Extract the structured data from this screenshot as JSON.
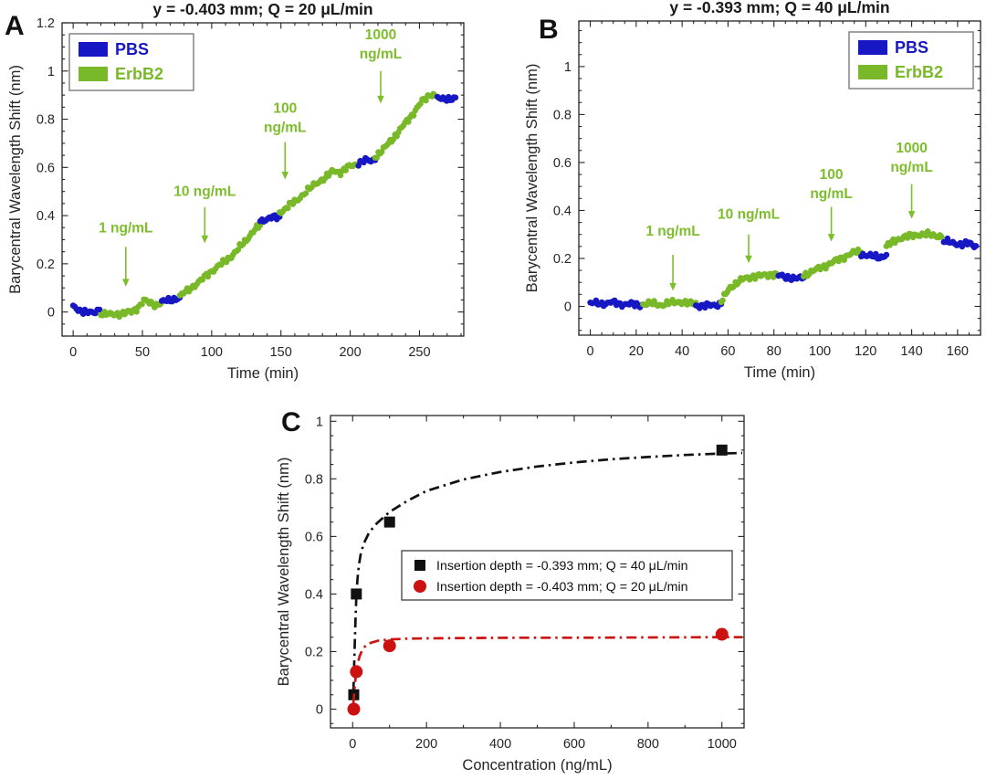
{
  "figure": {
    "background": "#ffffff"
  },
  "colors": {
    "pbs_blue": "#1717c4",
    "erbb2_green": "#79b929",
    "annotation_green": "#7cbe2b",
    "fit_black": "#111111",
    "fit_red": "#cc1111",
    "axis": "#252525",
    "title_text": "#1a1a1a",
    "legend_border": "#7a7a7a"
  },
  "chart_data": [
    {
      "panel_label": "A",
      "type": "scatter",
      "title": "y = -0.403 mm; Q = 20 μL/min",
      "xlabel": "Time (min)",
      "ylabel": "Barycentral Wavelength Shift (nm)",
      "xlim": [
        -8,
        282
      ],
      "ylim": [
        -0.1,
        1.2
      ],
      "xticks": [
        0,
        50,
        100,
        150,
        200,
        250
      ],
      "xtick_labels": [
        "0",
        "50",
        "100",
        "150",
        "200",
        "250"
      ],
      "yticks": [
        0,
        0.2,
        0.4,
        0.6,
        0.8,
        1,
        1.2
      ],
      "ytick_labels": [
        "0",
        "0.2",
        "0.4",
        "0.6",
        "0.8",
        "1",
        "1.2"
      ],
      "x_minor_step": 10,
      "y_minor_step": 0.05,
      "grid": false,
      "legend": {
        "position": "top-left",
        "entries": [
          {
            "label": "PBS",
            "color_key": "pbs_blue"
          },
          {
            "label": "ErbB2",
            "color_key": "erbb2_green"
          }
        ]
      },
      "series_segments": [
        {
          "series": "PBS",
          "color_key": "pbs_blue",
          "points": [
            [
              0,
              0.02
            ],
            [
              6,
              0.005
            ],
            [
              12,
              -0.005
            ],
            [
              16,
              0.0
            ],
            [
              19,
              0.01
            ]
          ]
        },
        {
          "series": "ErbB2",
          "color_key": "erbb2_green",
          "points": [
            [
              20,
              -0.005
            ],
            [
              28,
              -0.012
            ],
            [
              36,
              -0.005
            ],
            [
              42,
              0.0
            ],
            [
              47,
              0.02
            ],
            [
              51,
              0.048
            ],
            [
              55,
              0.038
            ],
            [
              60,
              0.03
            ],
            [
              64,
              0.04
            ]
          ]
        },
        {
          "series": "PBS",
          "color_key": "pbs_blue",
          "points": [
            [
              64,
              0.042
            ],
            [
              70,
              0.05
            ],
            [
              77,
              0.06
            ]
          ]
        },
        {
          "series": "ErbB2",
          "color_key": "erbb2_green",
          "points": [
            [
              77,
              0.065
            ],
            [
              85,
              0.1
            ],
            [
              92,
              0.13
            ],
            [
              100,
              0.17
            ],
            [
              107,
              0.2
            ],
            [
              113,
              0.225
            ],
            [
              119,
              0.26
            ],
            [
              125,
              0.3
            ],
            [
              130,
              0.335
            ],
            [
              135,
              0.36
            ]
          ]
        },
        {
          "series": "PBS",
          "color_key": "pbs_blue",
          "points": [
            [
              135,
              0.375
            ],
            [
              139,
              0.385
            ],
            [
              143,
              0.395
            ],
            [
              147,
              0.39
            ],
            [
              149,
              0.395
            ]
          ]
        },
        {
          "series": "ErbB2",
          "color_key": "erbb2_green",
          "points": [
            [
              149,
              0.41
            ],
            [
              155,
              0.44
            ],
            [
              161,
              0.46
            ],
            [
              168,
              0.5
            ],
            [
              175,
              0.53
            ],
            [
              182,
              0.56
            ],
            [
              188,
              0.585
            ],
            [
              193,
              0.58
            ],
            [
              198,
              0.6
            ],
            [
              206,
              0.615
            ]
          ]
        },
        {
          "series": "PBS",
          "color_key": "pbs_blue",
          "points": [
            [
              206,
              0.62
            ],
            [
              211,
              0.63
            ],
            [
              215,
              0.625
            ],
            [
              218,
              0.63
            ]
          ]
        },
        {
          "series": "ErbB2",
          "color_key": "erbb2_green",
          "points": [
            [
              218,
              0.645
            ],
            [
              224,
              0.675
            ],
            [
              230,
              0.715
            ],
            [
              236,
              0.755
            ],
            [
              242,
              0.8
            ],
            [
              247,
              0.835
            ],
            [
              252,
              0.875
            ],
            [
              256,
              0.895
            ],
            [
              259,
              0.905
            ],
            [
              261,
              0.9
            ]
          ]
        },
        {
          "series": "PBS",
          "color_key": "pbs_blue",
          "points": [
            [
              263,
              0.89
            ],
            [
              267,
              0.88
            ],
            [
              271,
              0.885
            ],
            [
              276,
              0.89
            ]
          ]
        }
      ],
      "annotations": [
        {
          "lines": [
            "1 ng/mL"
          ],
          "x": 38,
          "text_v": 0.35,
          "arrow_from": 0.27,
          "arrow_to": 0.105
        },
        {
          "lines": [
            "10 ng/mL"
          ],
          "x": 95,
          "text_v": 0.5,
          "arrow_from": 0.435,
          "arrow_to": 0.285
        },
        {
          "lines": [
            "100",
            "ng/mL"
          ],
          "x": 153,
          "text_v": 0.805,
          "arrow_from": 0.705,
          "arrow_to": 0.55
        },
        {
          "lines": [
            "1000",
            "ng/mL"
          ],
          "x": 222,
          "text_v": 1.11,
          "arrow_from": 1.0,
          "arrow_to": 0.865
        }
      ]
    },
    {
      "panel_label": "B",
      "type": "scatter",
      "title": "y = -0.393 mm; Q = 40 μL/min",
      "xlabel": "Time (min)",
      "ylabel": "Barycentral Wavelength Shift (nm)",
      "xlim": [
        -5,
        170
      ],
      "ylim": [
        -0.12,
        1.19
      ],
      "xticks": [
        0,
        20,
        40,
        60,
        80,
        100,
        120,
        140,
        160
      ],
      "xtick_labels": [
        "0",
        "20",
        "40",
        "60",
        "80",
        "100",
        "120",
        "140",
        "160"
      ],
      "yticks": [
        0,
        0.2,
        0.4,
        0.6,
        0.8,
        1
      ],
      "ytick_labels": [
        "0",
        "0.2",
        "0.4",
        "0.6",
        "0.8",
        "1"
      ],
      "x_minor_step": 5,
      "y_minor_step": 0.05,
      "grid": false,
      "legend": {
        "position": "top-right",
        "entries": [
          {
            "label": "PBS",
            "color_key": "pbs_blue"
          },
          {
            "label": "ErbB2",
            "color_key": "erbb2_green"
          }
        ]
      },
      "series_segments": [
        {
          "series": "PBS",
          "color_key": "pbs_blue",
          "points": [
            [
              0,
              0.015
            ],
            [
              5,
              0.01
            ],
            [
              9,
              0.018
            ],
            [
              13,
              0.008
            ],
            [
              17,
              0.012
            ],
            [
              21,
              0.003
            ],
            [
              23,
              0.008
            ]
          ]
        },
        {
          "series": "ErbB2",
          "color_key": "erbb2_green",
          "points": [
            [
              23,
              0.01
            ],
            [
              27,
              0.012
            ],
            [
              31,
              0.006
            ],
            [
              35,
              0.015
            ],
            [
              39,
              0.02
            ],
            [
              43,
              0.012
            ],
            [
              46,
              0.015
            ]
          ]
        },
        {
          "series": "PBS",
          "color_key": "pbs_blue",
          "points": [
            [
              46,
              0.004
            ],
            [
              50,
              0.002
            ],
            [
              54,
              0.006
            ],
            [
              57,
              0.01
            ]
          ]
        },
        {
          "series": "ErbB2",
          "color_key": "erbb2_green",
          "points": [
            [
              57,
              0.02
            ],
            [
              59,
              0.05
            ],
            [
              61,
              0.08
            ],
            [
              64,
              0.1
            ],
            [
              67,
              0.115
            ],
            [
              71,
              0.125
            ],
            [
              75,
              0.128
            ],
            [
              79,
              0.135
            ],
            [
              82,
              0.13
            ]
          ]
        },
        {
          "series": "PBS",
          "color_key": "pbs_blue",
          "points": [
            [
              82,
              0.128
            ],
            [
              86,
              0.122
            ],
            [
              90,
              0.115
            ],
            [
              93,
              0.12
            ]
          ]
        },
        {
          "series": "ErbB2",
          "color_key": "erbb2_green",
          "points": [
            [
              93,
              0.13
            ],
            [
              97,
              0.148
            ],
            [
              101,
              0.163
            ],
            [
              105,
              0.182
            ],
            [
              109,
              0.198
            ],
            [
              113,
              0.218
            ],
            [
              116,
              0.228
            ],
            [
              118,
              0.225
            ]
          ]
        },
        {
          "series": "PBS",
          "color_key": "pbs_blue",
          "points": [
            [
              118,
              0.218
            ],
            [
              122,
              0.21
            ],
            [
              126,
              0.205
            ],
            [
              129,
              0.215
            ]
          ]
        },
        {
          "series": "ErbB2",
          "color_key": "erbb2_green",
          "points": [
            [
              129,
              0.25
            ],
            [
              132,
              0.27
            ],
            [
              135,
              0.285
            ],
            [
              139,
              0.293
            ],
            [
              143,
              0.3
            ],
            [
              147,
              0.3
            ],
            [
              151,
              0.295
            ],
            [
              153,
              0.29
            ]
          ]
        },
        {
          "series": "PBS",
          "color_key": "pbs_blue",
          "points": [
            [
              154,
              0.272
            ],
            [
              158,
              0.265
            ],
            [
              162,
              0.258
            ],
            [
              165,
              0.263
            ],
            [
              168,
              0.252
            ]
          ]
        }
      ],
      "annotations": [
        {
          "lines": [
            "1 ng/mL"
          ],
          "x": 36,
          "text_v": 0.315,
          "arrow_from": 0.215,
          "arrow_to": 0.065
        },
        {
          "lines": [
            "10 ng/mL"
          ],
          "x": 69,
          "text_v": 0.385,
          "arrow_from": 0.3,
          "arrow_to": 0.18
        },
        {
          "lines": [
            "100",
            "ng/mL"
          ],
          "x": 105,
          "text_v": 0.51,
          "arrow_from": 0.415,
          "arrow_to": 0.27
        },
        {
          "lines": [
            "1000",
            "ng/mL"
          ],
          "x": 140,
          "text_v": 0.62,
          "arrow_from": 0.51,
          "arrow_to": 0.365
        }
      ]
    },
    {
      "panel_label": "C",
      "type": "scatter-fit",
      "title": "",
      "xlabel": "Concentration (ng/mL)",
      "ylabel": "Barycentral Wavelength Shift (nm)",
      "xlim": [
        -60,
        1060
      ],
      "ylim": [
        -0.065,
        1.02
      ],
      "xticks": [
        0,
        200,
        400,
        600,
        800,
        1000
      ],
      "xtick_labels": [
        "0",
        "200",
        "400",
        "600",
        "800",
        "1000"
      ],
      "yticks": [
        0,
        0.2,
        0.4,
        0.6,
        0.8,
        1
      ],
      "ytick_labels": [
        "0",
        "0.2",
        "0.4",
        "0.6",
        "0.8",
        "1"
      ],
      "x_minor_step": 100,
      "y_minor_step": 0.05,
      "grid": false,
      "legend": {
        "position": "center",
        "entries": [
          {
            "marker": "square",
            "color_key": "fit_black",
            "label": "Insertion depth = -0.393 mm; Q = 40 μL/min"
          },
          {
            "marker": "circle",
            "color_key": "fit_red",
            "label": "Insertion depth = -0.403 mm; Q = 20 μL/min"
          }
        ]
      },
      "series": [
        {
          "name": "Insertion depth = -0.393 mm; Q = 40 μL/min",
          "marker": "square",
          "color_key": "fit_black",
          "points": [
            [
              3,
              0.05
            ],
            [
              10,
              0.4
            ],
            [
              100,
              0.65
            ],
            [
              1000,
              0.9
            ]
          ],
          "fit_curve": [
            [
              2,
              0.06
            ],
            [
              4,
              0.15
            ],
            [
              6,
              0.24
            ],
            [
              8,
              0.32
            ],
            [
              10,
              0.39
            ],
            [
              13,
              0.45
            ],
            [
              17,
              0.5
            ],
            [
              22,
              0.54
            ],
            [
              30,
              0.575
            ],
            [
              45,
              0.615
            ],
            [
              65,
              0.645
            ],
            [
              100,
              0.685
            ],
            [
              150,
              0.725
            ],
            [
              200,
              0.758
            ],
            [
              300,
              0.798
            ],
            [
              400,
              0.824
            ],
            [
              500,
              0.843
            ],
            [
              600,
              0.857
            ],
            [
              700,
              0.868
            ],
            [
              800,
              0.876
            ],
            [
              900,
              0.883
            ],
            [
              1000,
              0.888
            ],
            [
              1055,
              0.89
            ]
          ]
        },
        {
          "name": "Insertion depth = -0.403 mm; Q = 20 μL/min",
          "marker": "circle",
          "color_key": "fit_red",
          "points": [
            [
              3,
              0.0
            ],
            [
              10,
              0.13
            ],
            [
              100,
              0.22
            ],
            [
              1000,
              0.26
            ]
          ],
          "fit_curve": [
            [
              2,
              0.02
            ],
            [
              4,
              0.055
            ],
            [
              6,
              0.085
            ],
            [
              8,
              0.11
            ],
            [
              10,
              0.13
            ],
            [
              14,
              0.16
            ],
            [
              19,
              0.185
            ],
            [
              26,
              0.205
            ],
            [
              35,
              0.22
            ],
            [
              50,
              0.231
            ],
            [
              70,
              0.238
            ],
            [
              100,
              0.242
            ],
            [
              150,
              0.245
            ],
            [
              200,
              0.246
            ],
            [
              300,
              0.247
            ],
            [
              450,
              0.248
            ],
            [
              600,
              0.248
            ],
            [
              800,
              0.249
            ],
            [
              1000,
              0.25
            ],
            [
              1055,
              0.25
            ]
          ]
        }
      ]
    }
  ]
}
